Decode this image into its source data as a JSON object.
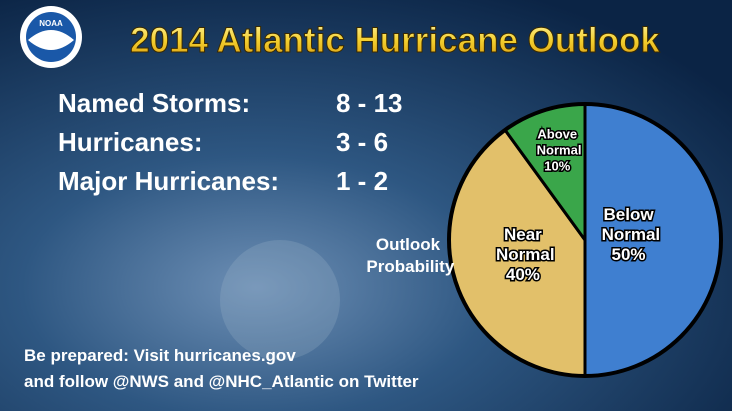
{
  "logo": "NOAA",
  "stats": [
    {
      "label": "Named Storms:",
      "value": "8 - 13"
    },
    {
      "label": "Hurricanes:",
      "value": "3 - 6"
    },
    {
      "label": "Major Hurricanes:",
      "value": "1 - 2"
    }
  ],
  "footer": [
    "Be prepared: Visit hurricanes.gov",
    "and follow @NWS and @NHC_Atlantic on Twitter"
  ],
  "chart_data": {
    "type": "pie",
    "title": "2014 Atlantic Hurricane Outlook",
    "label": "Outlook Probability",
    "categories": [
      "Below Normal",
      "Near Normal",
      "Above Normal"
    ],
    "values": [
      50,
      40,
      10
    ],
    "value_labels": [
      "50%",
      "40%",
      "10%"
    ],
    "colors": [
      "#3f7fd0",
      "#e2c06a",
      "#3aa64a"
    ]
  }
}
